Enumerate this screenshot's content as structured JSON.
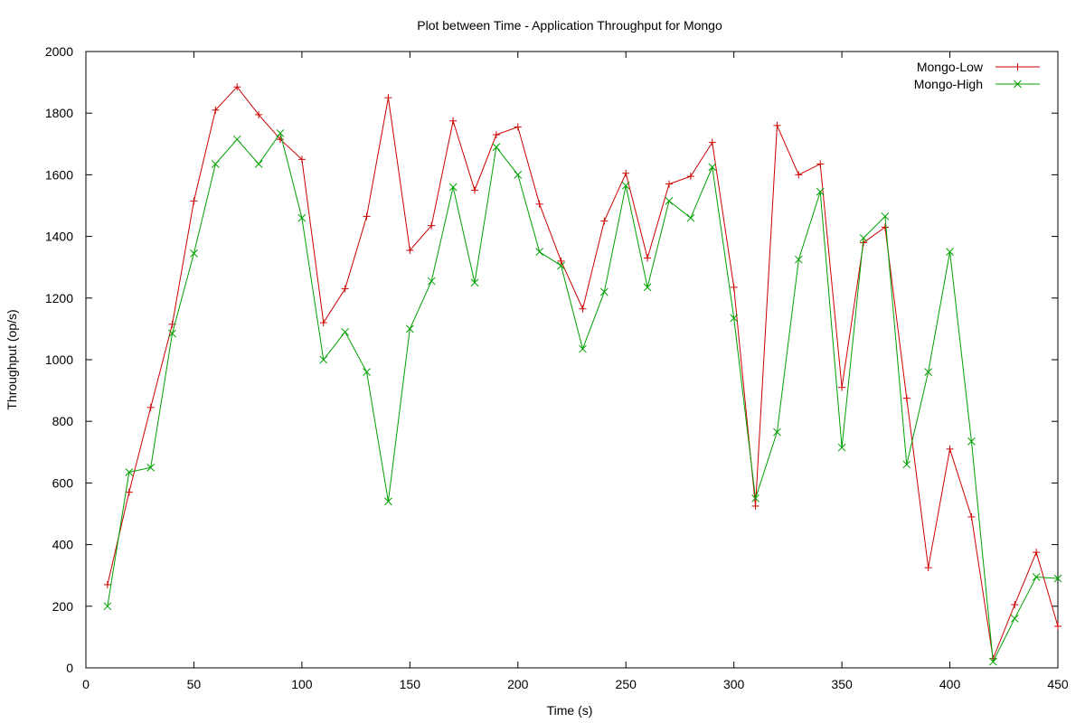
{
  "chart_data": {
    "type": "line",
    "title": "Plot between Time - Application Throughput for Mongo",
    "xlabel": "Time (s)",
    "ylabel": "Throughput (op/s)",
    "xlim": [
      0,
      450
    ],
    "ylim": [
      0,
      2000
    ],
    "x_ticks": [
      0,
      50,
      100,
      150,
      200,
      250,
      300,
      350,
      400,
      450
    ],
    "y_ticks": [
      0,
      200,
      400,
      600,
      800,
      1000,
      1200,
      1400,
      1600,
      1800,
      2000
    ],
    "grid": false,
    "legend_position": "top-right",
    "x": [
      10,
      20,
      30,
      40,
      50,
      60,
      70,
      80,
      90,
      100,
      110,
      120,
      130,
      140,
      150,
      160,
      170,
      180,
      190,
      200,
      210,
      220,
      230,
      240,
      250,
      260,
      270,
      280,
      290,
      300,
      310,
      320,
      330,
      340,
      350,
      360,
      370,
      380,
      390,
      400,
      410,
      420,
      430,
      440,
      450
    ],
    "series": [
      {
        "name": "Mongo-Low",
        "color": "#cc0000",
        "marker": "plus",
        "values": [
          270,
          570,
          845,
          1115,
          1515,
          1810,
          1885,
          1795,
          1715,
          1650,
          1120,
          1230,
          1465,
          1850,
          1355,
          1435,
          1775,
          1550,
          1730,
          1755,
          1505,
          1320,
          1165,
          1450,
          1605,
          1330,
          1570,
          1595,
          1705,
          1235,
          525,
          1760,
          1600,
          1635,
          910,
          1380,
          1430,
          875,
          325,
          710,
          490,
          30,
          205,
          375,
          135
        ]
      },
      {
        "name": "Mongo-High",
        "color": "#00a000",
        "marker": "x",
        "values": [
          200,
          635,
          650,
          1085,
          1345,
          1635,
          1715,
          1635,
          1735,
          1460,
          1000,
          1090,
          960,
          540,
          1100,
          1255,
          1560,
          1250,
          1690,
          1600,
          1350,
          1305,
          1035,
          1220,
          1565,
          1235,
          1515,
          1460,
          1625,
          1135,
          550,
          765,
          1325,
          1545,
          715,
          1395,
          1465,
          660,
          960,
          1350,
          735,
          20,
          160,
          295,
          290
        ]
      }
    ]
  }
}
